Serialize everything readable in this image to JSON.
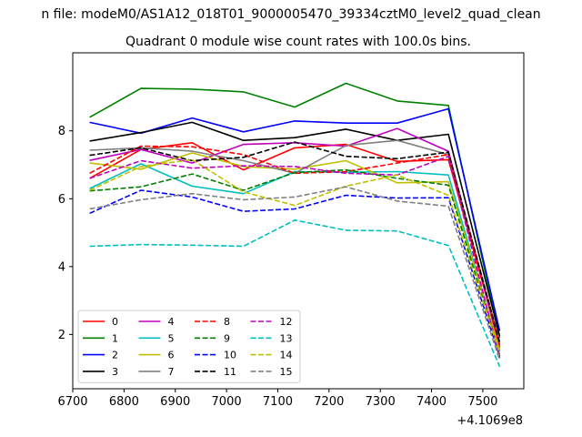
{
  "suptitle": "n file: modeM0/AS1A12_018T01_9000005470_39334cztM0_level2_quad_clean",
  "chart_data": {
    "type": "line",
    "title": "Quadrant 0 module wise count rates with 100.0s bins.",
    "xlabel": "",
    "ylabel": "",
    "x_offset_label": "+4.1069e8",
    "x": [
      6733,
      6833,
      6933,
      7033,
      7133,
      7233,
      7333,
      7433,
      7533
    ],
    "xlim": [
      6700,
      7580
    ],
    "ylim": [
      0.4,
      10.3
    ],
    "xticks": [
      6700,
      6800,
      6900,
      7000,
      7100,
      7200,
      7300,
      7400,
      7500
    ],
    "yticks": [
      2,
      4,
      6,
      8
    ],
    "grid": false,
    "legend_position": "lower-left",
    "legend_columns": 4,
    "series": [
      {
        "name": "0",
        "color": "#ff0000",
        "dash": "solid",
        "values": [
          6.6,
          7.45,
          7.65,
          6.85,
          7.5,
          7.6,
          7.1,
          7.15,
          1.7
        ]
      },
      {
        "name": "1",
        "color": "#008000",
        "dash": "solid",
        "values": [
          8.4,
          9.25,
          9.23,
          9.15,
          8.7,
          9.4,
          8.88,
          8.75,
          1.9
        ]
      },
      {
        "name": "2",
        "color": "#0000ff",
        "dash": "solid",
        "values": [
          8.25,
          7.93,
          8.38,
          7.97,
          8.29,
          8.23,
          8.23,
          8.65,
          2.1
        ]
      },
      {
        "name": "3",
        "color": "#000000",
        "dash": "solid",
        "values": [
          7.7,
          7.95,
          8.25,
          7.72,
          7.8,
          8.05,
          7.72,
          7.9,
          1.95
        ]
      },
      {
        "name": "4",
        "color": "#bf00bf",
        "dash": "solid",
        "values": [
          7.13,
          7.45,
          7.05,
          7.6,
          7.65,
          7.55,
          8.07,
          7.4,
          1.6
        ]
      },
      {
        "name": "5",
        "color": "#00bfbf",
        "dash": "solid",
        "values": [
          6.3,
          7.03,
          6.37,
          6.15,
          6.8,
          6.78,
          6.8,
          6.7,
          1.5
        ]
      },
      {
        "name": "6",
        "color": "#bfbf00",
        "dash": "solid",
        "values": [
          7.05,
          6.87,
          7.35,
          6.95,
          6.87,
          7.12,
          6.47,
          6.5,
          1.55
        ]
      },
      {
        "name": "7",
        "color": "#808080",
        "dash": "solid",
        "values": [
          7.43,
          7.5,
          7.4,
          7.12,
          6.75,
          7.57,
          7.72,
          7.3,
          1.8
        ]
      },
      {
        "name": "8",
        "color": "#ff0000",
        "dash": "dashed",
        "values": [
          6.75,
          7.55,
          7.53,
          7.3,
          6.75,
          6.8,
          7.05,
          7.3,
          1.65
        ]
      },
      {
        "name": "9",
        "color": "#008000",
        "dash": "dashed",
        "values": [
          6.23,
          6.35,
          6.73,
          6.25,
          6.77,
          6.85,
          6.6,
          6.4,
          1.4
        ]
      },
      {
        "name": "10",
        "color": "#0000ff",
        "dash": "dashed",
        "values": [
          5.57,
          6.25,
          6.05,
          5.63,
          5.7,
          6.1,
          6.02,
          6.03,
          1.35
        ]
      },
      {
        "name": "11",
        "color": "#000000",
        "dash": "dashed",
        "values": [
          7.28,
          7.5,
          7.12,
          7.22,
          7.67,
          7.25,
          7.18,
          7.37,
          1.75
        ]
      },
      {
        "name": "12",
        "color": "#bf00bf",
        "dash": "dashed",
        "values": [
          6.6,
          7.12,
          6.9,
          6.97,
          6.95,
          6.75,
          6.7,
          7.25,
          1.3
        ]
      },
      {
        "name": "13",
        "color": "#00bfbf",
        "dash": "dashed",
        "values": [
          4.6,
          4.65,
          4.63,
          4.6,
          5.37,
          5.07,
          5.05,
          4.62,
          1.05
        ]
      },
      {
        "name": "14",
        "color": "#bfbf00",
        "dash": "dashed",
        "values": [
          6.25,
          6.95,
          7.15,
          6.2,
          5.8,
          6.37,
          6.7,
          6.1,
          1.45
        ]
      },
      {
        "name": "15",
        "color": "#808080",
        "dash": "dashed",
        "values": [
          5.7,
          5.97,
          6.15,
          5.97,
          6.05,
          6.35,
          5.93,
          5.78,
          1.25
        ]
      }
    ]
  }
}
